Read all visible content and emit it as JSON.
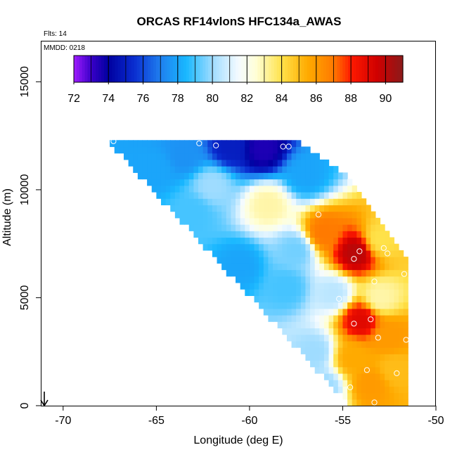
{
  "chart_data": {
    "type": "heatmap",
    "title": "ORCAS RF14vlonS HFC134a_AWAS",
    "annotations": [
      "Flts: 14",
      "MMDD: 0218"
    ],
    "xlabel": "Longitude (deg E)",
    "ylabel": "Altitude (m)",
    "xlim": [
      -71.2,
      -50
    ],
    "ylim": [
      0,
      16900
    ],
    "x_ticks": [
      -70,
      -65,
      -60,
      -55,
      -50
    ],
    "y_ticks": [
      0,
      5000,
      10000,
      15000
    ],
    "x_tick_labels": [
      "-70",
      "-65",
      "-60",
      "-55",
      "-50"
    ],
    "y_tick_labels": [
      "0",
      "5000",
      "10000",
      "15000"
    ],
    "colorbar": {
      "min": 72,
      "max": 91,
      "ticks": [
        72,
        74,
        76,
        78,
        80,
        82,
        84,
        86,
        88,
        90
      ],
      "tick_labels": [
        "72",
        "74",
        "76",
        "78",
        "80",
        "82",
        "84",
        "86",
        "88",
        "90"
      ],
      "stops": [
        {
          "value": 72,
          "color": "#a01cff"
        },
        {
          "value": 73,
          "color": "#3a00c8"
        },
        {
          "value": 74,
          "color": "#0000a0"
        },
        {
          "value": 75.5,
          "color": "#0a2ed0"
        },
        {
          "value": 77,
          "color": "#1f7fef"
        },
        {
          "value": 78.5,
          "color": "#19b8ff"
        },
        {
          "value": 80,
          "color": "#9fdcff"
        },
        {
          "value": 81.5,
          "color": "#f4fbff"
        },
        {
          "value": 82.5,
          "color": "#ffffd8"
        },
        {
          "value": 84,
          "color": "#ffe24a"
        },
        {
          "value": 85.5,
          "color": "#ffaa00"
        },
        {
          "value": 87,
          "color": "#ff7a00"
        },
        {
          "value": 88,
          "color": "#ff1a00"
        },
        {
          "value": 89.5,
          "color": "#d00000"
        },
        {
          "value": 91,
          "color": "#8b1a1a"
        }
      ]
    },
    "field_anchors": [
      {
        "lon": -61.0,
        "alt": 12000,
        "value": 75
      },
      {
        "lon": -59.3,
        "alt": 11900,
        "value": 73.5
      },
      {
        "lon": -63.5,
        "alt": 11600,
        "value": 77.5
      },
      {
        "lon": -57.0,
        "alt": 10700,
        "value": 78
      },
      {
        "lon": -62.0,
        "alt": 10200,
        "value": 80
      },
      {
        "lon": -59.0,
        "alt": 9300,
        "value": 83
      },
      {
        "lon": -56.0,
        "alt": 8000,
        "value": 87
      },
      {
        "lon": -54.3,
        "alt": 7100,
        "value": 90
      },
      {
        "lon": -53.0,
        "alt": 7700,
        "value": 84
      },
      {
        "lon": -57.5,
        "alt": 7200,
        "value": 79.5
      },
      {
        "lon": -58.0,
        "alt": 5500,
        "value": 79
      },
      {
        "lon": -60.5,
        "alt": 6500,
        "value": 78
      },
      {
        "lon": -55.5,
        "alt": 5200,
        "value": 80.5
      },
      {
        "lon": -53.0,
        "alt": 5000,
        "value": 83
      },
      {
        "lon": -54.0,
        "alt": 4000,
        "value": 89
      },
      {
        "lon": -52.5,
        "alt": 3200,
        "value": 86
      },
      {
        "lon": -54.5,
        "alt": 2200,
        "value": 85.5
      },
      {
        "lon": -53.5,
        "alt": 1000,
        "value": 86
      },
      {
        "lon": -52.2,
        "alt": 1700,
        "value": 85
      },
      {
        "lon": -56.5,
        "alt": 2500,
        "value": 80
      },
      {
        "lon": -56.0,
        "alt": 900,
        "value": 80
      },
      {
        "lon": -65.0,
        "alt": 11000,
        "value": 78
      },
      {
        "lon": -63.0,
        "alt": 9000,
        "value": 79
      }
    ],
    "sample_points": [
      {
        "lon": -67.3,
        "alt": 12250
      },
      {
        "lon": -62.7,
        "alt": 12150
      },
      {
        "lon": -61.8,
        "alt": 12050
      },
      {
        "lon": -58.2,
        "alt": 12000
      },
      {
        "lon": -57.9,
        "alt": 12000
      },
      {
        "lon": -56.3,
        "alt": 8850
      },
      {
        "lon": -54.1,
        "alt": 7150
      },
      {
        "lon": -54.4,
        "alt": 6800
      },
      {
        "lon": -52.8,
        "alt": 7300
      },
      {
        "lon": -52.6,
        "alt": 7050
      },
      {
        "lon": -51.5,
        "alt": 7550
      },
      {
        "lon": -53.3,
        "alt": 5750
      },
      {
        "lon": -51.7,
        "alt": 6100
      },
      {
        "lon": -55.2,
        "alt": 4950
      },
      {
        "lon": -53.5,
        "alt": 4000
      },
      {
        "lon": -54.4,
        "alt": 3800
      },
      {
        "lon": -53.1,
        "alt": 3150
      },
      {
        "lon": -51.6,
        "alt": 3050
      },
      {
        "lon": -53.7,
        "alt": 1650
      },
      {
        "lon": -52.1,
        "alt": 1500
      },
      {
        "lon": -54.6,
        "alt": 850
      },
      {
        "lon": -54.9,
        "alt": 150
      },
      {
        "lon": -53.3,
        "alt": 150
      }
    ]
  }
}
